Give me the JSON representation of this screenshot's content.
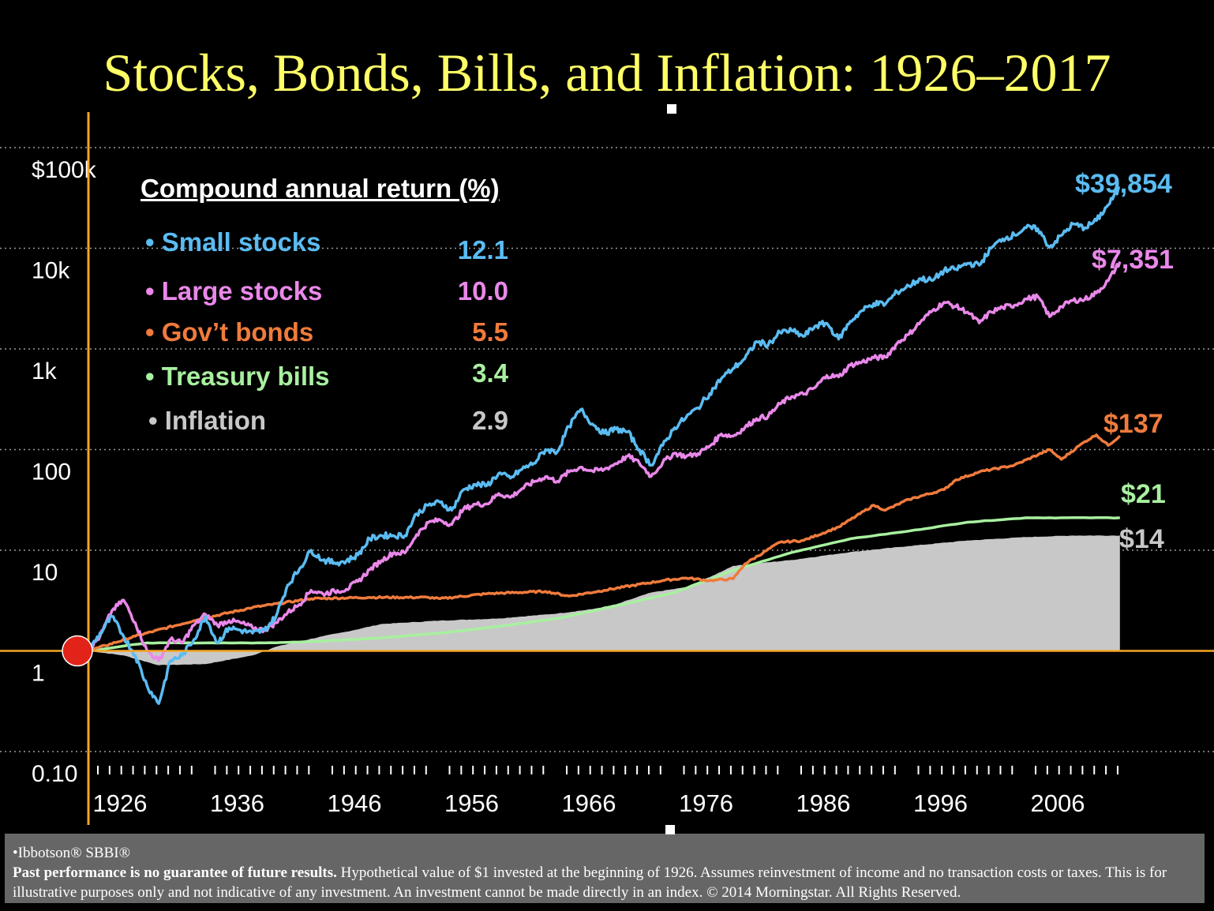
{
  "title": "Stocks, Bonds, Bills, and Inflation: 1926–2017",
  "chart_data": {
    "type": "line",
    "title": "Stocks, Bonds, Bills, and Inflation: 1926–2017",
    "y_scale": "log",
    "ylim": [
      0.1,
      100000
    ],
    "y_ticks": [
      {
        "value": 100000,
        "label": "$100k"
      },
      {
        "value": 10000,
        "label": "10k"
      },
      {
        "value": 1000,
        "label": "1k"
      },
      {
        "value": 100,
        "label": "100"
      },
      {
        "value": 10,
        "label": "10"
      },
      {
        "value": 1,
        "label": "1"
      },
      {
        "value": 0.1,
        "label": "0.10"
      }
    ],
    "xlim": [
      1926,
      2014
    ],
    "x_ticks": [
      1926,
      1936,
      1946,
      1956,
      1966,
      1976,
      1986,
      1996,
      2006
    ],
    "grid": "horizontal dotted",
    "start_value": 1,
    "legend_title": "Compound annual return (%)",
    "series": [
      {
        "name": "Small stocks",
        "return": "12.1",
        "end_label": "$39,854",
        "color": "#5bbcf2",
        "type": "line",
        "points": [
          [
            1926,
            1
          ],
          [
            1928,
            2.2
          ],
          [
            1929,
            1.4
          ],
          [
            1930,
            0.9
          ],
          [
            1931,
            0.45
          ],
          [
            1932,
            0.3
          ],
          [
            1933,
            0.8
          ],
          [
            1934,
            0.9
          ],
          [
            1935,
            1.3
          ],
          [
            1936,
            2.2
          ],
          [
            1937,
            1.2
          ],
          [
            1938,
            1.7
          ],
          [
            1939,
            1.6
          ],
          [
            1940,
            1.5
          ],
          [
            1941,
            1.6
          ],
          [
            1942,
            2.2
          ],
          [
            1943,
            4.5
          ],
          [
            1944,
            6.5
          ],
          [
            1945,
            10
          ],
          [
            1946,
            8
          ],
          [
            1947,
            7.5
          ],
          [
            1948,
            7.8
          ],
          [
            1949,
            9
          ],
          [
            1950,
            13
          ],
          [
            1951,
            14
          ],
          [
            1952,
            14
          ],
          [
            1953,
            14
          ],
          [
            1954,
            23
          ],
          [
            1955,
            28
          ],
          [
            1956,
            30
          ],
          [
            1957,
            25
          ],
          [
            1958,
            40
          ],
          [
            1959,
            45
          ],
          [
            1960,
            44
          ],
          [
            1961,
            58
          ],
          [
            1962,
            52
          ],
          [
            1963,
            64
          ],
          [
            1964,
            73
          ],
          [
            1965,
            100
          ],
          [
            1966,
            95
          ],
          [
            1967,
            170
          ],
          [
            1968,
            250
          ],
          [
            1969,
            180
          ],
          [
            1970,
            145
          ],
          [
            1971,
            160
          ],
          [
            1972,
            150
          ],
          [
            1973,
            100
          ],
          [
            1974,
            70
          ],
          [
            1975,
            110
          ],
          [
            1976,
            165
          ],
          [
            1977,
            210
          ],
          [
            1978,
            260
          ],
          [
            1979,
            360
          ],
          [
            1980,
            510
          ],
          [
            1981,
            640
          ],
          [
            1982,
            800
          ],
          [
            1983,
            1180
          ],
          [
            1984,
            1100
          ],
          [
            1985,
            1460
          ],
          [
            1986,
            1520
          ],
          [
            1987,
            1330
          ],
          [
            1988,
            1690
          ],
          [
            1989,
            1800
          ],
          [
            1990,
            1250
          ],
          [
            1991,
            1880
          ],
          [
            1992,
            2400
          ],
          [
            1993,
            2830
          ],
          [
            1994,
            2800
          ],
          [
            1995,
            3680
          ],
          [
            1996,
            4230
          ],
          [
            1997,
            5000
          ],
          [
            1998,
            4780
          ],
          [
            1999,
            6000
          ],
          [
            2000,
            6200
          ],
          [
            2001,
            7100
          ],
          [
            2002,
            6800
          ],
          [
            2003,
            10000
          ],
          [
            2004,
            12400
          ],
          [
            2005,
            13600
          ],
          [
            2006,
            16000
          ],
          [
            2007,
            15600
          ],
          [
            2008,
            10200
          ],
          [
            2009,
            13400
          ],
          [
            2010,
            17400
          ],
          [
            2011,
            16000
          ],
          [
            2012,
            18900
          ],
          [
            2013,
            27000
          ],
          [
            2014,
            39854
          ]
        ]
      },
      {
        "name": "Large stocks",
        "return": "10.0",
        "end_label": "$7,351",
        "color": "#ea88ea",
        "type": "line",
        "points": [
          [
            1926,
            1
          ],
          [
            1927,
            1.4
          ],
          [
            1928,
            2.5
          ],
          [
            1929,
            3.2
          ],
          [
            1930,
            1.9
          ],
          [
            1931,
            1.0
          ],
          [
            1932,
            0.8
          ],
          [
            1933,
            1.3
          ],
          [
            1934,
            1.2
          ],
          [
            1935,
            1.8
          ],
          [
            1936,
            2.3
          ],
          [
            1937,
            1.8
          ],
          [
            1938,
            2.0
          ],
          [
            1939,
            1.9
          ],
          [
            1940,
            1.7
          ],
          [
            1941,
            1.6
          ],
          [
            1942,
            1.9
          ],
          [
            1943,
            2.4
          ],
          [
            1944,
            2.9
          ],
          [
            1945,
            4.0
          ],
          [
            1946,
            3.7
          ],
          [
            1947,
            3.9
          ],
          [
            1948,
            4.1
          ],
          [
            1949,
            4.9
          ],
          [
            1950,
            6.4
          ],
          [
            1951,
            7.9
          ],
          [
            1952,
            9.4
          ],
          [
            1953,
            9.4
          ],
          [
            1954,
            14.3
          ],
          [
            1955,
            18.8
          ],
          [
            1956,
            20
          ],
          [
            1957,
            18
          ],
          [
            1958,
            25.6
          ],
          [
            1959,
            28.6
          ],
          [
            1960,
            28.8
          ],
          [
            1961,
            36.6
          ],
          [
            1962,
            33.5
          ],
          [
            1963,
            41.0
          ],
          [
            1964,
            47.8
          ],
          [
            1965,
            53.8
          ],
          [
            1966,
            48.4
          ],
          [
            1967,
            60
          ],
          [
            1968,
            66.8
          ],
          [
            1969,
            61.1
          ],
          [
            1970,
            63.5
          ],
          [
            1971,
            72.6
          ],
          [
            1972,
            86.3
          ],
          [
            1973,
            73.7
          ],
          [
            1974,
            54.2
          ],
          [
            1975,
            74.4
          ],
          [
            1976,
            92.2
          ],
          [
            1977,
            85.6
          ],
          [
            1978,
            91.2
          ],
          [
            1979,
            108
          ],
          [
            1980,
            143
          ],
          [
            1981,
            136
          ],
          [
            1982,
            165
          ],
          [
            1983,
            203
          ],
          [
            1984,
            215
          ],
          [
            1985,
            284
          ],
          [
            1986,
            337
          ],
          [
            1987,
            355
          ],
          [
            1988,
            414
          ],
          [
            1989,
            545
          ],
          [
            1990,
            528
          ],
          [
            1991,
            689
          ],
          [
            1992,
            741
          ],
          [
            1993,
            816
          ],
          [
            1994,
            827
          ],
          [
            1995,
            1137
          ],
          [
            1996,
            1399
          ],
          [
            1997,
            1865
          ],
          [
            1998,
            2398
          ],
          [
            1999,
            2903
          ],
          [
            2000,
            2639
          ],
          [
            2001,
            2325
          ],
          [
            2002,
            1812
          ],
          [
            2003,
            2332
          ],
          [
            2004,
            2586
          ],
          [
            2005,
            2713
          ],
          [
            2006,
            3141
          ],
          [
            2007,
            3314
          ],
          [
            2008,
            2088
          ],
          [
            2009,
            2640
          ],
          [
            2010,
            3038
          ],
          [
            2011,
            3102
          ],
          [
            2012,
            3598
          ],
          [
            2013,
            4764
          ],
          [
            2014,
            7351
          ]
        ]
      },
      {
        "name": "Gov’t bonds",
        "return": "5.5",
        "end_label": "$137",
        "color": "#f07b3c",
        "type": "line",
        "points": [
          [
            1926,
            1
          ],
          [
            1930,
            1.4
          ],
          [
            1935,
            2.0
          ],
          [
            1940,
            2.7
          ],
          [
            1945,
            3.3
          ],
          [
            1950,
            3.4
          ],
          [
            1955,
            3.4
          ],
          [
            1956,
            3.3
          ],
          [
            1960,
            3.7
          ],
          [
            1965,
            3.9
          ],
          [
            1967,
            3.5
          ],
          [
            1970,
            4.0
          ],
          [
            1975,
            5.0
          ],
          [
            1977,
            5.3
          ],
          [
            1979,
            5.0
          ],
          [
            1981,
            5.2
          ],
          [
            1982,
            7.3
          ],
          [
            1985,
            12.0
          ],
          [
            1987,
            12.5
          ],
          [
            1990,
            17
          ],
          [
            1993,
            28
          ],
          [
            1994,
            25
          ],
          [
            1996,
            32
          ],
          [
            1999,
            40
          ],
          [
            2000,
            50
          ],
          [
            2002,
            60
          ],
          [
            2005,
            70
          ],
          [
            2008,
            100
          ],
          [
            2009,
            80
          ],
          [
            2011,
            120
          ],
          [
            2012,
            140
          ],
          [
            2013,
            110
          ],
          [
            2014,
            137
          ]
        ]
      },
      {
        "name": "Treasury bills",
        "return": "3.4",
        "end_label": "$21",
        "color": "#a8f0a0",
        "type": "line",
        "points": [
          [
            1926,
            1
          ],
          [
            1931,
            1.2
          ],
          [
            1936,
            1.2
          ],
          [
            1941,
            1.2
          ],
          [
            1946,
            1.25
          ],
          [
            1951,
            1.35
          ],
          [
            1956,
            1.5
          ],
          [
            1961,
            1.75
          ],
          [
            1966,
            2.1
          ],
          [
            1971,
            2.8
          ],
          [
            1976,
            3.8
          ],
          [
            1981,
            6.3
          ],
          [
            1986,
            9.5
          ],
          [
            1991,
            13
          ],
          [
            1996,
            15.5
          ],
          [
            2001,
            19
          ],
          [
            2006,
            21
          ],
          [
            2009,
            21
          ],
          [
            2014,
            21
          ]
        ]
      },
      {
        "name": "Inflation",
        "return": "2.9",
        "end_label": "$14",
        "color": "#c8c8c8",
        "type": "area",
        "points": [
          [
            1926,
            1
          ],
          [
            1929,
            0.9
          ],
          [
            1932,
            0.72
          ],
          [
            1936,
            0.74
          ],
          [
            1940,
            0.9
          ],
          [
            1942,
            1.1
          ],
          [
            1946,
            1.4
          ],
          [
            1948,
            1.55
          ],
          [
            1951,
            1.85
          ],
          [
            1956,
            2.0
          ],
          [
            1961,
            2.1
          ],
          [
            1966,
            2.35
          ],
          [
            1969,
            2.6
          ],
          [
            1971,
            2.9
          ],
          [
            1974,
            3.8
          ],
          [
            1977,
            4.3
          ],
          [
            1979,
            5.4
          ],
          [
            1981,
            7.0
          ],
          [
            1986,
            8.0
          ],
          [
            1991,
            9.6
          ],
          [
            1996,
            11.0
          ],
          [
            2001,
            12.5
          ],
          [
            2006,
            13.5
          ],
          [
            2010,
            14
          ],
          [
            2014,
            14
          ]
        ]
      }
    ]
  },
  "footer": {
    "source": "•Ibbotson® SBBI®",
    "disclaimer_bold": "Past performance is no guarantee of future results.",
    "disclaimer": " Hypothetical value of $1 invested at the beginning of 1926. Assumes reinvestment of income and no transaction costs or taxes. This is for illustrative purposes only and not indicative of any investment. An investment cannot be made directly in an index. © 2014 Morningstar. All Rights Reserved."
  }
}
